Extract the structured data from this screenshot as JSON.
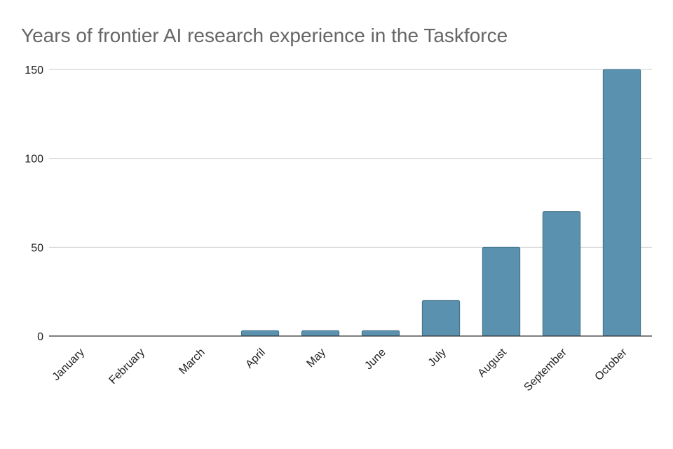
{
  "chart_data": {
    "type": "bar",
    "title": "Years of frontier AI research experience in the Taskforce",
    "categories": [
      "January",
      "February",
      "March",
      "April",
      "May",
      "June",
      "July",
      "August",
      "September",
      "October"
    ],
    "values": [
      0,
      0,
      0,
      3,
      3,
      3,
      20,
      50,
      70,
      150
    ],
    "color": "#5a91ae",
    "ylim": [
      0,
      150
    ],
    "yticks": [
      0,
      50,
      100,
      150
    ],
    "grid": true
  }
}
